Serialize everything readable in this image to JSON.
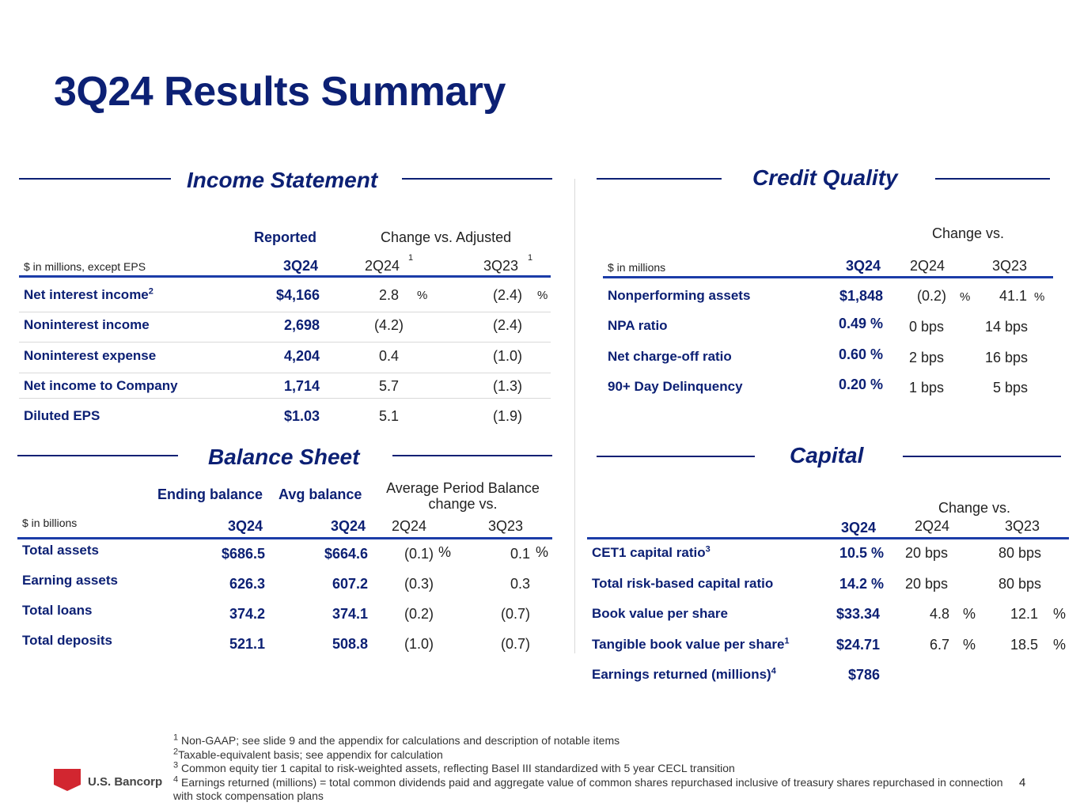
{
  "title": "3Q24 Results Summary",
  "income": {
    "title": "Income Statement",
    "hdr_reported": "Reported",
    "hdr_change": "Change vs. Adjusted",
    "units": "$ in millions, except EPS",
    "col_3q24": "3Q24",
    "col_2q24": "2Q24",
    "col_3q23": "3Q23",
    "col_note": "1",
    "pct": "%",
    "rows": [
      {
        "label": "Net interest income",
        "sup": "2",
        "value": "$4,166",
        "c2q24": "2.8",
        "c3q23": "(2.4)"
      },
      {
        "label": "Noninterest income",
        "sup": "",
        "value": "2,698",
        "c2q24": "(4.2)",
        "c3q23": "(2.4)"
      },
      {
        "label": "Noninterest expense",
        "sup": "",
        "value": "4,204",
        "c2q24": "0.4",
        "c3q23": "(1.0)"
      },
      {
        "label": "Net income to Company",
        "sup": "",
        "value": "1,714",
        "c2q24": "5.7",
        "c3q23": "(1.3)"
      },
      {
        "label": "Diluted EPS",
        "sup": "",
        "value": "$1.03",
        "c2q24": "5.1",
        "c3q23": "(1.9)"
      }
    ]
  },
  "credit": {
    "title": "Credit Quality",
    "hdr_change": "Change vs.",
    "units": "$ in millions",
    "col_3q24": "3Q24",
    "col_2q24": "2Q24",
    "col_3q23": "3Q23",
    "pct": "%",
    "rows": [
      {
        "label": "Nonperforming assets",
        "value": "$1,848",
        "c2q24": "(0.2)",
        "c3q23": "41.1"
      },
      {
        "label": "NPA ratio",
        "value": "0.49 %",
        "c2q24": "0 bps",
        "c3q23": "14 bps"
      },
      {
        "label": "Net charge-off ratio",
        "value": "0.60 %",
        "c2q24": "2 bps",
        "c3q23": "16 bps"
      },
      {
        "label": "90+ Day Delinquency",
        "value": "0.20 %",
        "c2q24": "1 bps",
        "c3q23": "5 bps"
      }
    ]
  },
  "balance": {
    "title": "Balance Sheet",
    "hdr_ending": "Ending balance",
    "hdr_avg": "Avg balance",
    "hdr_change_line1": "Average Period Balance",
    "hdr_change_line2": "change vs.",
    "units": "$ in billions",
    "col_end": "3Q24",
    "col_avg": "3Q24",
    "col_2q24": "2Q24",
    "col_3q23": "3Q23",
    "pct": "%",
    "rows": [
      {
        "label": "Total assets",
        "ending": "$686.5",
        "avg": "$664.6",
        "c2q24": "(0.1)",
        "c3q23": "0.1"
      },
      {
        "label": "Earning assets",
        "ending": "626.3",
        "avg": "607.2",
        "c2q24": "(0.3)",
        "c3q23": "0.3"
      },
      {
        "label": "Total loans",
        "ending": "374.2",
        "avg": "374.1",
        "c2q24": "(0.2)",
        "c3q23": "(0.7)"
      },
      {
        "label": "Total deposits",
        "ending": "521.1",
        "avg": "508.8",
        "c2q24": "(1.0)",
        "c3q23": "(0.7)"
      }
    ]
  },
  "capital": {
    "title": "Capital",
    "hdr_change": "Change vs.",
    "col_3q24": "3Q24",
    "col_2q24": "2Q24",
    "col_3q23": "3Q23",
    "pct": "%",
    "rows": [
      {
        "label": "CET1 capital ratio",
        "sup": "3",
        "value": "10.5 %",
        "c2q24": "20 bps",
        "c3q23": "80 bps",
        "show_pct": false
      },
      {
        "label": "Total risk-based capital ratio",
        "sup": "",
        "value": "14.2 %",
        "c2q24": "20 bps",
        "c3q23": "80 bps",
        "show_pct": false
      },
      {
        "label": "Book value per share",
        "sup": "",
        "value": "$33.34",
        "c2q24": "4.8",
        "c3q23": "12.1",
        "show_pct": true
      },
      {
        "label": "Tangible book value per share",
        "sup": "1",
        "value": "$24.71",
        "c2q24": "6.7",
        "c3q23": "18.5",
        "show_pct": true
      },
      {
        "label": "Earnings returned (millions)",
        "sup": "4",
        "value": "$786",
        "c2q24": "",
        "c3q23": "",
        "show_pct": false
      }
    ]
  },
  "footnotes": [
    {
      "num": "1",
      "text": "Non-GAAP; see slide 9 and the appendix for calculations and description of notable items"
    },
    {
      "num": "2",
      "text": "Taxable-equivalent basis; see appendix for calculation"
    },
    {
      "num": "3",
      "text": "Common equity tier 1 capital to risk-weighted assets, reflecting Basel III standardized with 5 year CECL transition"
    },
    {
      "num": "4",
      "text": "Earnings returned (millions) = total common dividends paid and aggregate value of common shares repurchased inclusive of treasury shares repurchased in connection with stock compensation plans"
    }
  ],
  "logo": {
    "text": "U.S. Bancorp"
  },
  "page_number": "4",
  "colors": {
    "brand_navy": "#0c2074",
    "rule_blue": "#1b3ca8",
    "logo_red": "#d22630"
  }
}
